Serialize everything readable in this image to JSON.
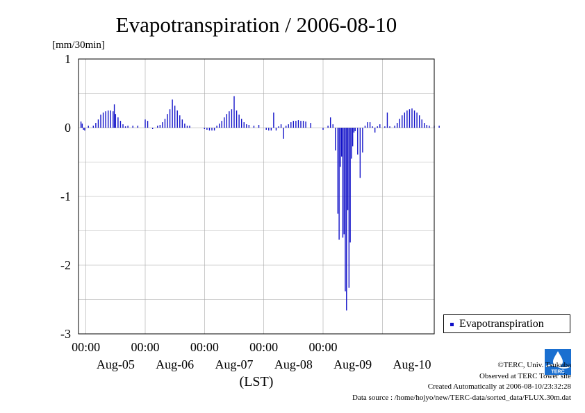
{
  "chart_data": {
    "type": "bar",
    "title": "Evapotranspiration / 2006-08-10",
    "ylabel": "[mm/30min]",
    "xlabel": "(LST)",
    "ylim": [
      -3,
      1
    ],
    "y_ticks": [
      "1",
      "0",
      "-1",
      "-2",
      "-3"
    ],
    "x_tick_time_labels": [
      "00:00",
      "00:00",
      "00:00",
      "00:00",
      "00:00"
    ],
    "x_day_labels": [
      "Aug-05",
      "Aug-06",
      "Aug-07",
      "Aug-08",
      "Aug-09",
      "Aug-10"
    ],
    "grid": true,
    "legend_position": "bottom-right outside",
    "series": [
      {
        "name": "Evapotranspiration",
        "color": "#1010c8",
        "x": [
          "Aug-04 22:00",
          "Aug-04 22:30",
          "Aug-04 23:00",
          "Aug-04 23:30",
          "Aug-05 01:00",
          "Aug-05 03:00",
          "Aug-05 04:00",
          "Aug-05 05:00",
          "Aug-05 06:00",
          "Aug-05 07:00",
          "Aug-05 08:00",
          "Aug-05 09:00",
          "Aug-05 10:00",
          "Aug-05 11:00",
          "Aug-05 11:30",
          "Aug-05 12:00",
          "Aug-05 13:00",
          "Aug-05 14:00",
          "Aug-05 15:00",
          "Aug-05 16:00",
          "Aug-05 17:00",
          "Aug-05 19:00",
          "Aug-05 21:00",
          "Aug-06 00:00",
          "Aug-06 01:00",
          "Aug-06 03:00",
          "Aug-06 05:00",
          "Aug-06 06:00",
          "Aug-06 07:00",
          "Aug-06 08:00",
          "Aug-06 09:00",
          "Aug-06 10:00",
          "Aug-06 11:00",
          "Aug-06 12:00",
          "Aug-06 13:00",
          "Aug-06 14:00",
          "Aug-06 15:00",
          "Aug-06 16:00",
          "Aug-06 17:00",
          "Aug-06 18:00",
          "Aug-07 00:00",
          "Aug-07 01:00",
          "Aug-07 02:00",
          "Aug-07 03:00",
          "Aug-07 04:00",
          "Aug-07 05:00",
          "Aug-07 06:00",
          "Aug-07 07:00",
          "Aug-07 08:00",
          "Aug-07 09:00",
          "Aug-07 10:00",
          "Aug-07 11:00",
          "Aug-07 12:00",
          "Aug-07 13:00",
          "Aug-07 14:00",
          "Aug-07 15:00",
          "Aug-07 16:00",
          "Aug-07 17:00",
          "Aug-07 18:00",
          "Aug-07 20:00",
          "Aug-07 22:00",
          "Aug-08 01:00",
          "Aug-08 02:00",
          "Aug-08 03:00",
          "Aug-08 04:00",
          "Aug-08 05:00",
          "Aug-08 06:00",
          "Aug-08 07:00",
          "Aug-08 08:00",
          "Aug-08 09:00",
          "Aug-08 10:00",
          "Aug-08 11:00",
          "Aug-08 12:00",
          "Aug-08 13:00",
          "Aug-08 14:00",
          "Aug-08 15:00",
          "Aug-08 16:00",
          "Aug-08 17:00",
          "Aug-08 19:00",
          "Aug-09 00:00",
          "Aug-09 02:00",
          "Aug-09 03:00",
          "Aug-09 04:00",
          "Aug-09 05:00",
          "Aug-09 06:00",
          "Aug-09 06:30",
          "Aug-09 07:00",
          "Aug-09 07:30",
          "Aug-09 08:00",
          "Aug-09 08:30",
          "Aug-09 09:00",
          "Aug-09 09:30",
          "Aug-09 10:00",
          "Aug-09 10:30",
          "Aug-09 11:00",
          "Aug-09 11:30",
          "Aug-09 12:00",
          "Aug-09 12:30",
          "Aug-09 13:00",
          "Aug-09 14:00",
          "Aug-09 15:00",
          "Aug-09 16:00",
          "Aug-09 17:00",
          "Aug-09 18:00",
          "Aug-09 19:00",
          "Aug-09 20:00",
          "Aug-09 21:00",
          "Aug-09 22:00",
          "Aug-09 23:00",
          "Aug-10 01:00",
          "Aug-10 02:00",
          "Aug-10 03:00",
          "Aug-10 05:00",
          "Aug-10 06:00",
          "Aug-10 07:00",
          "Aug-10 08:00",
          "Aug-10 09:00",
          "Aug-10 10:00",
          "Aug-10 11:00",
          "Aug-10 12:00",
          "Aug-10 13:00",
          "Aug-10 14:00",
          "Aug-10 15:00",
          "Aug-10 16:00",
          "Aug-10 17:00",
          "Aug-10 18:00",
          "Aug-10 19:00",
          "Aug-10 21:00",
          "Aug-10 23:00"
        ],
        "values": [
          0.09,
          0.06,
          -0.03,
          -0.04,
          0.03,
          0.03,
          0.07,
          0.12,
          0.19,
          0.22,
          0.24,
          0.25,
          0.25,
          0.24,
          0.34,
          0.2,
          0.15,
          0.1,
          0.05,
          0.02,
          0.03,
          0.03,
          0.03,
          0.12,
          0.1,
          -0.02,
          0.03,
          0.04,
          0.08,
          0.13,
          0.2,
          0.27,
          0.41,
          0.32,
          0.25,
          0.18,
          0.12,
          0.06,
          0.03,
          0.03,
          -0.02,
          -0.03,
          -0.04,
          -0.04,
          -0.04,
          0.03,
          0.06,
          0.1,
          0.15,
          0.2,
          0.24,
          0.27,
          0.46,
          0.25,
          0.19,
          0.13,
          0.08,
          0.05,
          0.04,
          0.03,
          0.04,
          -0.03,
          -0.04,
          -0.04,
          0.22,
          -0.04,
          0.02,
          0.05,
          -0.16,
          0.03,
          0.05,
          0.08,
          0.1,
          0.1,
          0.11,
          0.1,
          0.1,
          0.09,
          0.07,
          -0.03,
          0.03,
          0.15,
          0.05,
          -0.33,
          -1.25,
          -1.63,
          -0.57,
          -0.42,
          -1.6,
          -1.55,
          -2.38,
          -2.66,
          -1.2,
          -2.33,
          -1.67,
          -0.45,
          -0.27,
          -0.07,
          -0.05,
          -0.39,
          -0.73,
          -0.36,
          0.03,
          0.08,
          0.08,
          0.02,
          -0.07,
          0.02,
          0.05,
          0.02,
          0.22,
          0.02,
          0.03,
          0.07,
          0.13,
          0.18,
          0.22,
          0.25,
          0.27,
          0.28,
          0.25,
          0.22,
          0.18,
          0.12,
          0.07,
          0.04,
          0.03,
          0.03,
          0.03
        ]
      }
    ]
  },
  "credits": {
    "copyright": "©TERC, Univ. Tsukuba",
    "observed": "Observed at TERC Tower site",
    "created": "Created Automatically at 2006-08-10/23:32:28",
    "source": "Data source : /home/hojyo/new/TERC-data/sorted_data/FLUX.30m.dat"
  },
  "logo": {
    "text": "TERC"
  }
}
